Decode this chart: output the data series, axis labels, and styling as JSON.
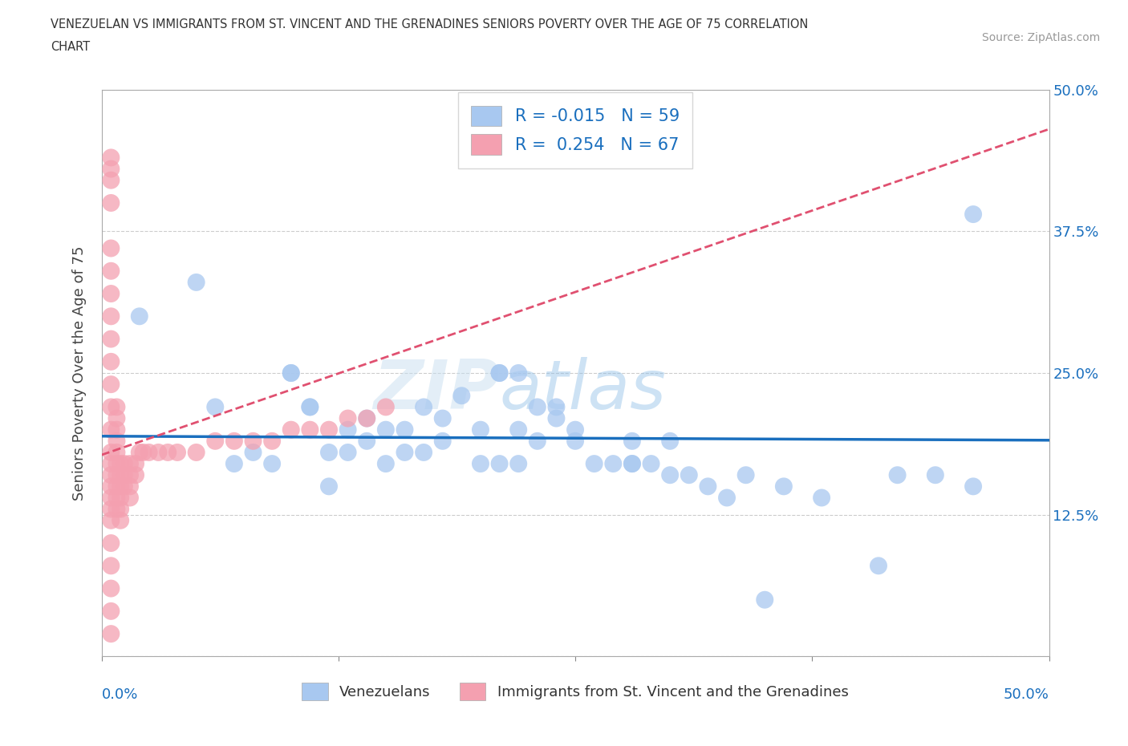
{
  "title_line1": "VENEZUELAN VS IMMIGRANTS FROM ST. VINCENT AND THE GRENADINES SENIORS POVERTY OVER THE AGE OF 75 CORRELATION",
  "title_line2": "CHART",
  "source": "Source: ZipAtlas.com",
  "ylabel": "Seniors Poverty Over the Age of 75",
  "xlim": [
    0.0,
    0.5
  ],
  "ylim": [
    0.0,
    0.5
  ],
  "yticks": [
    0.0,
    0.125,
    0.25,
    0.375,
    0.5
  ],
  "yticklabels_right": [
    "",
    "12.5%",
    "25.0%",
    "37.5%",
    "50.0%"
  ],
  "xticklabels_outer": [
    "0.0%",
    "50.0%"
  ],
  "xticks_outer": [
    0.0,
    0.5
  ],
  "R_blue": -0.015,
  "N_blue": 59,
  "R_pink": 0.254,
  "N_pink": 67,
  "label_blue": "Venezuelans",
  "label_pink": "Immigrants from St. Vincent and the Grenadines",
  "scatter_blue_color": "#a8c8f0",
  "scatter_pink_color": "#f4a0b0",
  "line_blue_color": "#1a6fbe",
  "line_pink_color": "#e05070",
  "tick_color": "#1a6fbe",
  "grid_color": "#cccccc",
  "watermark_zip": "ZIP",
  "watermark_atlas": "atlas",
  "blue_x": [
    0.02,
    0.05,
    0.06,
    0.07,
    0.08,
    0.09,
    0.1,
    0.1,
    0.11,
    0.11,
    0.12,
    0.12,
    0.13,
    0.13,
    0.14,
    0.14,
    0.15,
    0.15,
    0.16,
    0.16,
    0.17,
    0.17,
    0.18,
    0.18,
    0.19,
    0.2,
    0.2,
    0.21,
    0.22,
    0.22,
    0.23,
    0.24,
    0.24,
    0.25,
    0.25,
    0.26,
    0.27,
    0.28,
    0.28,
    0.29,
    0.3,
    0.3,
    0.31,
    0.32,
    0.33,
    0.34,
    0.35,
    0.36,
    0.38,
    0.41,
    0.42,
    0.44,
    0.46,
    0.46,
    0.28,
    0.21,
    0.22,
    0.21,
    0.23
  ],
  "blue_y": [
    0.3,
    0.33,
    0.22,
    0.17,
    0.18,
    0.17,
    0.25,
    0.25,
    0.22,
    0.22,
    0.15,
    0.18,
    0.2,
    0.18,
    0.19,
    0.21,
    0.17,
    0.2,
    0.2,
    0.18,
    0.22,
    0.18,
    0.21,
    0.19,
    0.23,
    0.2,
    0.17,
    0.17,
    0.2,
    0.17,
    0.19,
    0.21,
    0.22,
    0.2,
    0.19,
    0.17,
    0.17,
    0.19,
    0.17,
    0.17,
    0.19,
    0.16,
    0.16,
    0.15,
    0.14,
    0.16,
    0.05,
    0.15,
    0.14,
    0.08,
    0.16,
    0.16,
    0.39,
    0.15,
    0.17,
    0.25,
    0.25,
    0.25,
    0.22
  ],
  "pink_x": [
    0.005,
    0.005,
    0.005,
    0.005,
    0.005,
    0.005,
    0.005,
    0.005,
    0.005,
    0.005,
    0.005,
    0.005,
    0.005,
    0.005,
    0.005,
    0.005,
    0.005,
    0.005,
    0.005,
    0.005,
    0.008,
    0.008,
    0.008,
    0.008,
    0.008,
    0.008,
    0.008,
    0.008,
    0.008,
    0.008,
    0.01,
    0.01,
    0.01,
    0.01,
    0.01,
    0.01,
    0.012,
    0.012,
    0.012,
    0.015,
    0.015,
    0.015,
    0.015,
    0.018,
    0.018,
    0.02,
    0.022,
    0.025,
    0.03,
    0.035,
    0.04,
    0.05,
    0.06,
    0.07,
    0.08,
    0.09,
    0.1,
    0.11,
    0.12,
    0.13,
    0.14,
    0.15,
    0.005,
    0.005,
    0.005,
    0.005,
    0.005
  ],
  "pink_y": [
    0.44,
    0.43,
    0.42,
    0.4,
    0.36,
    0.34,
    0.32,
    0.3,
    0.28,
    0.26,
    0.24,
    0.22,
    0.2,
    0.18,
    0.17,
    0.16,
    0.15,
    0.14,
    0.13,
    0.12,
    0.22,
    0.21,
    0.2,
    0.19,
    0.18,
    0.17,
    0.16,
    0.15,
    0.14,
    0.13,
    0.17,
    0.16,
    0.15,
    0.14,
    0.13,
    0.12,
    0.17,
    0.16,
    0.15,
    0.17,
    0.16,
    0.15,
    0.14,
    0.17,
    0.16,
    0.18,
    0.18,
    0.18,
    0.18,
    0.18,
    0.18,
    0.18,
    0.19,
    0.19,
    0.19,
    0.19,
    0.2,
    0.2,
    0.2,
    0.21,
    0.21,
    0.22,
    0.1,
    0.08,
    0.06,
    0.04,
    0.02
  ]
}
